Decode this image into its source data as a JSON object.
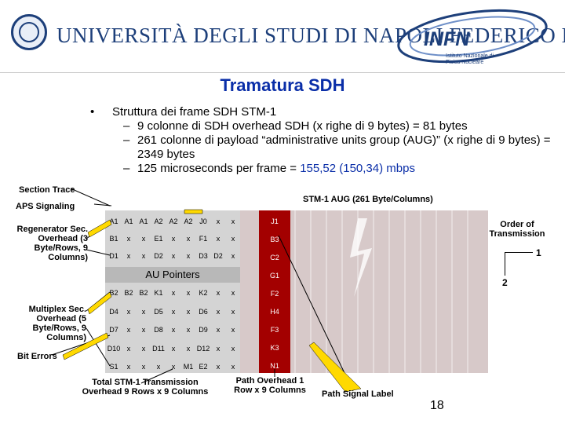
{
  "header": {
    "university": "UNIVERSITÀ DEGLI STUDI DI NAPOLI FEDERICO II",
    "infn_logo": "INFN",
    "infn_sub": "Istituto Nazionale di Fisica Nucleare"
  },
  "title": "Tramatura SDH",
  "bullets": {
    "main": "Struttura dei frame SDH STM-1",
    "sub1": "9 colonne di SDH overhead SDH (x righe di 9 bytes) = 81 bytes",
    "sub2": "261 colonne di payload “administrative units group (AUG)” (x righe di 9 bytes) = 2349 bytes",
    "sub3_pre": "125 microseconds per frame = ",
    "sub3_hl": "155,52 (150,34) mbps"
  },
  "labels": {
    "section_trace": "Section Trace",
    "aps": "APS Signaling",
    "regenerator": "Regenerator Sec. Overhead (3 Byte/Rows, 9 Columns)",
    "multiplex": "Multiplex Sec. Overhead (5 Byte/Rows, 9 Columns)",
    "bit_errors": "Bit Errors",
    "aug": "STM-1 AUG  (261 Byte/Columns)",
    "order": "Order of Transmission",
    "order1": "1",
    "order2": "2",
    "total": "Total STM-1 Transmission Overhead 9 Rows x 9 Columns",
    "path_overhead": "Path Overhead 1 Row x 9 Columns",
    "path_signal": "Path Signal Label",
    "au_pointers": "AU Pointers",
    "page": "18"
  },
  "rsoh_rows": [
    [
      "A1",
      "A1",
      "A1",
      "A2",
      "A2",
      "A2",
      "J0",
      "x",
      "x"
    ],
    [
      "B1",
      "x",
      "x",
      "E1",
      "x",
      "x",
      "F1",
      "x",
      "x"
    ],
    [
      "D1",
      "x",
      "x",
      "D2",
      "x",
      "x",
      "D3",
      "D2",
      "x"
    ]
  ],
  "msoh_rows": [
    [
      "B2",
      "B2",
      "B2",
      "K1",
      "x",
      "x",
      "K2",
      "x",
      "x"
    ],
    [
      "D4",
      "x",
      "x",
      "D5",
      "x",
      "x",
      "D6",
      "x",
      "x"
    ],
    [
      "D7",
      "x",
      "x",
      "D8",
      "x",
      "x",
      "D9",
      "x",
      "x"
    ],
    [
      "D10",
      "x",
      "x",
      "D11",
      "x",
      "x",
      "D12",
      "x",
      "x"
    ],
    [
      "S1",
      "x",
      "x",
      "x",
      "x",
      "M1",
      "E2",
      "x",
      "x"
    ]
  ],
  "poh": [
    "J1",
    "B3",
    "C2",
    "G1",
    "F2",
    "H4",
    "F3",
    "K3",
    "N1"
  ]
}
